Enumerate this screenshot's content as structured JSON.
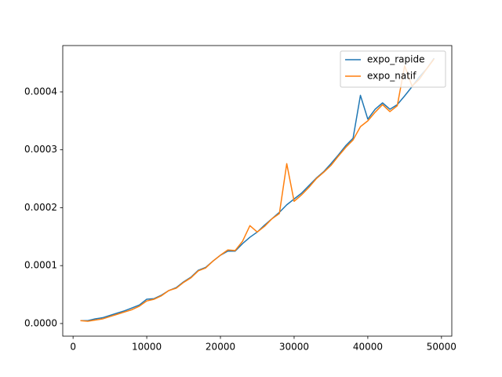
{
  "chart_data": {
    "type": "line",
    "x": [
      1000,
      2000,
      3000,
      4000,
      5000,
      6000,
      7000,
      8000,
      9000,
      10000,
      11000,
      12000,
      13000,
      14000,
      15000,
      16000,
      17000,
      18000,
      19000,
      20000,
      21000,
      22000,
      23000,
      24000,
      25000,
      26000,
      27000,
      28000,
      29000,
      30000,
      31000,
      32000,
      33000,
      34000,
      35000,
      36000,
      37000,
      38000,
      39000,
      40000,
      41000,
      42000,
      43000,
      44000,
      45000,
      46000,
      47000,
      48000,
      49000
    ],
    "series": [
      {
        "name": "expo_rapide",
        "color": "#1f77b4",
        "values": [
          5e-06,
          5e-06,
          8e-06,
          1e-05,
          1.4e-05,
          1.8e-05,
          2.2e-05,
          2.7e-05,
          3.2e-05,
          4.2e-05,
          4.3e-05,
          4.9e-05,
          5.7e-05,
          6.2e-05,
          7.2e-05,
          8e-05,
          9.2e-05,
          9.7e-05,
          0.000108,
          0.000118,
          0.000125,
          0.000125,
          0.000138,
          0.000149,
          0.000158,
          0.00017,
          0.000181,
          0.000192,
          0.000205,
          0.000215,
          0.000225,
          0.000238,
          0.000251,
          0.000262,
          0.000276,
          0.000291,
          0.000307,
          0.00032,
          0.000394,
          0.000353,
          0.00037,
          0.000381,
          0.00037,
          0.000378,
          0.000393,
          0.000409,
          0.000426,
          0.00044,
          0.000458
        ]
      },
      {
        "name": "expo_natif",
        "color": "#ff7f0e",
        "values": [
          5e-06,
          4e-06,
          6e-06,
          8e-06,
          1.2e-05,
          1.6e-05,
          2e-05,
          2.4e-05,
          3e-05,
          3.9e-05,
          4.2e-05,
          4.8e-05,
          5.7e-05,
          6.1e-05,
          7.1e-05,
          7.9e-05,
          9.1e-05,
          9.6e-05,
          0.000108,
          0.000118,
          0.000127,
          0.000126,
          0.000142,
          0.000169,
          0.000158,
          0.000168,
          0.000181,
          0.00019,
          0.000276,
          0.000211,
          0.000222,
          0.000235,
          0.00025,
          0.000261,
          0.000273,
          0.000289,
          0.000304,
          0.000317,
          0.00034,
          0.00035,
          0.000365,
          0.000378,
          0.000366,
          0.000376,
          0.000445,
          0.00041,
          0.000422,
          0.00044,
          0.000457
        ]
      }
    ],
    "xlim": [
      -1400,
      51400
    ],
    "xticks": [
      0,
      10000,
      20000,
      30000,
      40000,
      50000
    ],
    "ylim": [
      -2.18e-05,
      0.00048
    ],
    "yticks": [
      {
        "value": 0,
        "label": "0.0000"
      },
      {
        "value": 0.0001,
        "label": "0.0001"
      },
      {
        "value": 0.0002,
        "label": "0.0002"
      },
      {
        "value": 0.0003,
        "label": "0.0003"
      },
      {
        "value": 0.0004,
        "label": "0.0004"
      }
    ],
    "legend": "upper right"
  }
}
